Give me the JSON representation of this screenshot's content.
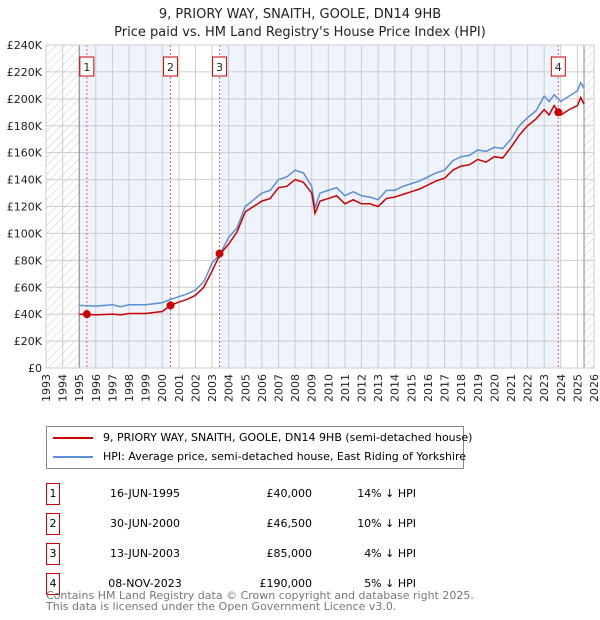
{
  "title": {
    "line1": "9, PRIORY WAY, SNAITH, GOOLE, DN14 9HB",
    "line2": "Price paid vs. HM Land Registry's House Price Index (HPI)"
  },
  "chart_data": {
    "type": "line",
    "xlim": [
      1993,
      2026
    ],
    "ylim": [
      0,
      240000
    ],
    "x_ticks": [
      1993,
      1994,
      1995,
      1996,
      1997,
      1998,
      1999,
      2000,
      2001,
      2002,
      2003,
      2004,
      2005,
      2006,
      2007,
      2008,
      2009,
      2010,
      2011,
      2012,
      2013,
      2014,
      2015,
      2016,
      2017,
      2018,
      2019,
      2020,
      2021,
      2022,
      2023,
      2024,
      2025,
      2026
    ],
    "y_ticks": [
      {
        "v": 0,
        "label": "£0"
      },
      {
        "v": 20,
        "label": "£20K"
      },
      {
        "v": 40,
        "label": "£40K"
      },
      {
        "v": 60,
        "label": "£60K"
      },
      {
        "v": 80,
        "label": "£80K"
      },
      {
        "v": 100,
        "label": "£100K"
      },
      {
        "v": 120,
        "label": "£120K"
      },
      {
        "v": 140,
        "label": "£140K"
      },
      {
        "v": 160,
        "label": "£160K"
      },
      {
        "v": 180,
        "label": "£180K"
      },
      {
        "v": 200,
        "label": "£200K"
      },
      {
        "v": 220,
        "label": "£220K"
      },
      {
        "v": 240,
        "label": "£240K"
      }
    ],
    "y_units": "thousands GBP",
    "x": [
      1995,
      1996,
      1997,
      1997.5,
      1998,
      1999,
      2000,
      2000.5,
      2001,
      2001.5,
      2002,
      2002.5,
      2003,
      2003.5,
      2004,
      2004.5,
      2005,
      2005.5,
      2006,
      2006.5,
      2007,
      2007.5,
      2008,
      2008.5,
      2009,
      2009.2,
      2009.5,
      2010,
      2010.5,
      2011,
      2011.5,
      2012,
      2012.5,
      2013,
      2013.5,
      2014,
      2014.5,
      2015,
      2015.5,
      2016,
      2016.5,
      2017,
      2017.5,
      2018,
      2018.5,
      2019,
      2019.5,
      2020,
      2020.5,
      2021,
      2021.5,
      2022,
      2022.5,
      2023,
      2023.3,
      2023.6,
      2024,
      2024.5,
      2025,
      2025.2,
      2025.4
    ],
    "series": [
      {
        "name": "9, PRIORY WAY, SNAITH, GOOLE, DN14 9HB (semi-detached house)",
        "color": "#cc0000",
        "values": [
          40,
          39.5,
          40,
          39.5,
          40.5,
          40.5,
          42,
          46.5,
          49,
          51,
          54,
          60,
          72,
          85,
          92,
          101,
          116,
          120,
          124,
          126,
          134,
          135,
          140,
          138,
          130,
          115,
          124,
          126,
          128,
          122,
          125,
          122,
          122,
          120,
          126,
          127,
          129,
          131,
          133,
          136,
          139,
          141,
          147,
          150,
          151,
          155,
          153,
          157,
          156,
          164,
          173,
          180,
          185,
          192,
          188,
          195,
          188,
          192,
          195,
          201,
          196
        ]
      },
      {
        "name": "HPI: Average price, semi-detached house, East Riding of Yorkshire",
        "color": "#5b8fd6",
        "values": [
          46.5,
          46,
          47,
          45.5,
          47,
          47,
          48.5,
          51,
          53,
          55,
          58,
          64,
          78,
          85,
          97,
          104,
          120,
          125,
          130,
          132,
          140,
          142,
          147,
          145,
          135,
          119,
          130,
          132,
          134,
          128,
          131,
          128,
          127,
          125,
          132,
          132,
          135,
          137,
          139,
          142,
          145,
          147,
          154,
          157,
          158,
          162,
          161,
          164,
          163,
          170,
          180,
          186,
          191,
          202,
          198,
          203,
          198,
          202,
          206,
          212,
          208
        ]
      }
    ],
    "data_start": 1995,
    "data_end": 2025.4,
    "sales": [
      {
        "n": "1",
        "x": 1995.46,
        "value": 40,
        "date": "16-JUN-1995",
        "price": "£40,000",
        "hpi": "14% ↓ HPI"
      },
      {
        "n": "2",
        "x": 2000.5,
        "value": 46.5,
        "date": "30-JUN-2000",
        "price": "£46,500",
        "hpi": "10% ↓ HPI"
      },
      {
        "n": "3",
        "x": 2003.45,
        "value": 85,
        "date": "13-JUN-2003",
        "price": "£85,000",
        "hpi": "4% ↓ HPI"
      },
      {
        "n": "4",
        "x": 2023.85,
        "value": 190,
        "date": "08-NOV-2023",
        "price": "£190,000",
        "hpi": "5% ↓ HPI"
      }
    ]
  },
  "footer": {
    "line1": "Contains HM Land Registry data © Crown copyright and database right 2025.",
    "line2": "This data is licensed under the Open Government Licence v3.0."
  }
}
